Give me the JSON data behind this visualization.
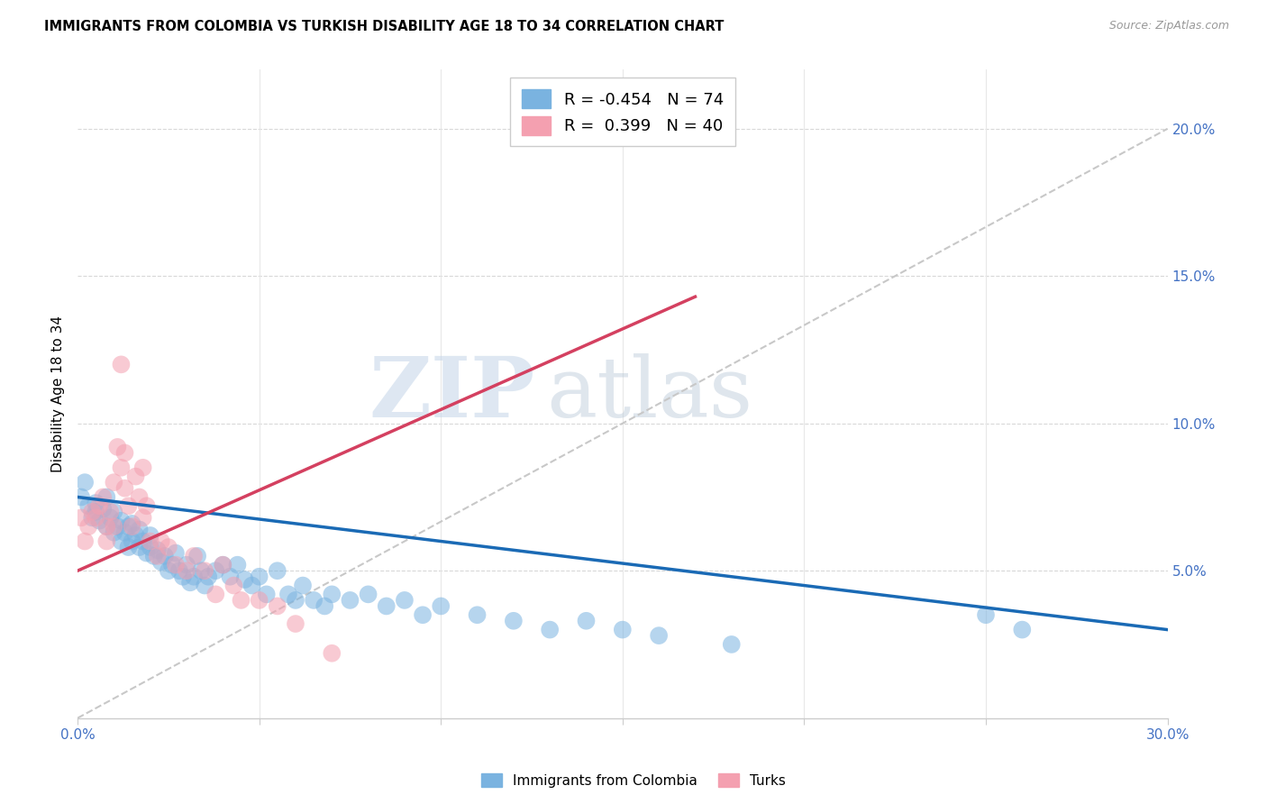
{
  "title": "IMMIGRANTS FROM COLOMBIA VS TURKISH DISABILITY AGE 18 TO 34 CORRELATION CHART",
  "source": "Source: ZipAtlas.com",
  "ylabel": "Disability Age 18 to 34",
  "right_yticks": [
    "20.0%",
    "15.0%",
    "10.0%",
    "5.0%"
  ],
  "right_ytick_vals": [
    0.2,
    0.15,
    0.1,
    0.05
  ],
  "xlim": [
    0.0,
    0.3
  ],
  "ylim": [
    0.0,
    0.22
  ],
  "watermark_zip": "ZIP",
  "watermark_atlas": "atlas",
  "legend_blue_R": "-0.454",
  "legend_blue_N": "74",
  "legend_pink_R": "0.399",
  "legend_pink_N": "40",
  "legend_label_blue": "Immigrants from Colombia",
  "legend_label_pink": "Turks",
  "blue_color": "#7ab3e0",
  "pink_color": "#f4a0b0",
  "blue_line_color": "#1a6ab5",
  "pink_line_color": "#d44060",
  "dashed_line_color": "#c8c8c8",
  "blue_scatter_x": [
    0.001,
    0.002,
    0.003,
    0.004,
    0.005,
    0.005,
    0.006,
    0.007,
    0.008,
    0.008,
    0.009,
    0.01,
    0.01,
    0.011,
    0.012,
    0.012,
    0.013,
    0.014,
    0.014,
    0.015,
    0.015,
    0.016,
    0.017,
    0.017,
    0.018,
    0.019,
    0.02,
    0.02,
    0.021,
    0.022,
    0.023,
    0.024,
    0.025,
    0.026,
    0.027,
    0.028,
    0.029,
    0.03,
    0.031,
    0.032,
    0.033,
    0.034,
    0.035,
    0.036,
    0.038,
    0.04,
    0.042,
    0.044,
    0.046,
    0.048,
    0.05,
    0.052,
    0.055,
    0.058,
    0.06,
    0.062,
    0.065,
    0.068,
    0.07,
    0.075,
    0.08,
    0.085,
    0.09,
    0.095,
    0.1,
    0.11,
    0.12,
    0.13,
    0.14,
    0.15,
    0.16,
    0.18,
    0.25,
    0.26
  ],
  "blue_scatter_y": [
    0.075,
    0.08,
    0.072,
    0.068,
    0.07,
    0.073,
    0.067,
    0.071,
    0.065,
    0.075,
    0.068,
    0.063,
    0.07,
    0.065,
    0.06,
    0.067,
    0.063,
    0.058,
    0.065,
    0.06,
    0.066,
    0.062,
    0.058,
    0.064,
    0.06,
    0.056,
    0.058,
    0.062,
    0.055,
    0.057,
    0.053,
    0.055,
    0.05,
    0.052,
    0.056,
    0.05,
    0.048,
    0.052,
    0.046,
    0.048,
    0.055,
    0.05,
    0.045,
    0.048,
    0.05,
    0.052,
    0.048,
    0.052,
    0.047,
    0.045,
    0.048,
    0.042,
    0.05,
    0.042,
    0.04,
    0.045,
    0.04,
    0.038,
    0.042,
    0.04,
    0.042,
    0.038,
    0.04,
    0.035,
    0.038,
    0.035,
    0.033,
    0.03,
    0.033,
    0.03,
    0.028,
    0.025,
    0.035,
    0.03
  ],
  "pink_scatter_x": [
    0.001,
    0.002,
    0.003,
    0.004,
    0.005,
    0.006,
    0.007,
    0.008,
    0.008,
    0.009,
    0.01,
    0.01,
    0.011,
    0.012,
    0.013,
    0.013,
    0.014,
    0.015,
    0.016,
    0.017,
    0.018,
    0.018,
    0.019,
    0.02,
    0.022,
    0.023,
    0.025,
    0.027,
    0.03,
    0.032,
    0.035,
    0.038,
    0.04,
    0.043,
    0.045,
    0.05,
    0.055,
    0.06,
    0.012,
    0.07
  ],
  "pink_scatter_y": [
    0.068,
    0.06,
    0.065,
    0.07,
    0.068,
    0.072,
    0.075,
    0.065,
    0.06,
    0.07,
    0.065,
    0.08,
    0.092,
    0.085,
    0.078,
    0.09,
    0.072,
    0.065,
    0.082,
    0.075,
    0.068,
    0.085,
    0.072,
    0.06,
    0.055,
    0.06,
    0.058,
    0.052,
    0.05,
    0.055,
    0.05,
    0.042,
    0.052,
    0.045,
    0.04,
    0.04,
    0.038,
    0.032,
    0.12,
    0.022
  ],
  "blue_trendline_x": [
    0.0,
    0.3
  ],
  "blue_trendline_y": [
    0.075,
    0.03
  ],
  "pink_trendline_x": [
    0.0,
    0.17
  ],
  "pink_trendline_y": [
    0.05,
    0.143
  ],
  "dashed_trendline_x": [
    0.0,
    0.3
  ],
  "dashed_trendline_y": [
    0.0,
    0.2
  ]
}
